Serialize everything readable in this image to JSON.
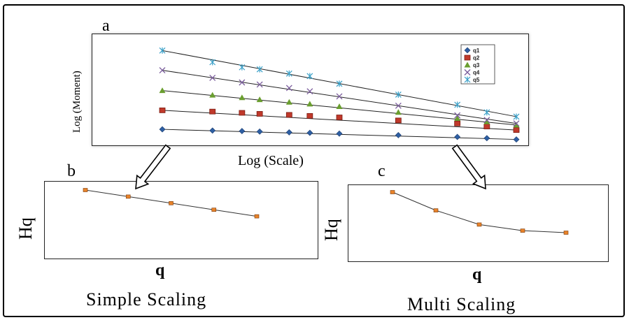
{
  "panels": {
    "a": {
      "letter": "a",
      "ylabel": "Log (Moment)",
      "xlabel": "Log (Scale)"
    },
    "b": {
      "letter": "b",
      "ylabel": "Hq",
      "xlabel": "q",
      "caption": "Simple Scaling"
    },
    "c": {
      "letter": "c",
      "ylabel": "Hq",
      "xlabel": "q",
      "caption": "Multi Scaling"
    }
  },
  "chart_data": [
    {
      "id": "a",
      "type": "line",
      "xlabel": "Log (Scale)",
      "ylabel": "Log (Moment)",
      "x": [
        1,
        2.7,
        3.7,
        4.3,
        5.3,
        6.0,
        7.0,
        9.0,
        11.0,
        12.0,
        13.0
      ],
      "series": [
        {
          "name": "q1",
          "marker": "diamond",
          "color": "#2e5fa3",
          "values": [
            0.55,
            0.5,
            0.48,
            0.46,
            0.43,
            0.41,
            0.38,
            0.32,
            0.25,
            0.2,
            0.15
          ]
        },
        {
          "name": "q2",
          "marker": "square",
          "color": "#c0392b",
          "values": [
            1.3,
            1.25,
            1.2,
            1.16,
            1.12,
            1.08,
            1.02,
            0.9,
            0.78,
            0.66,
            0.52
          ]
        },
        {
          "name": "q3",
          "marker": "triangle",
          "color": "#6a9e2f",
          "values": [
            2.08,
            1.9,
            1.8,
            1.72,
            1.62,
            1.55,
            1.45,
            1.22,
            0.98,
            0.85,
            0.72
          ]
        },
        {
          "name": "q4",
          "marker": "x",
          "color": "#7a5c9c",
          "values": [
            2.88,
            2.58,
            2.4,
            2.32,
            2.18,
            2.05,
            1.85,
            1.48,
            1.1,
            0.92,
            0.78
          ]
        },
        {
          "name": "q5",
          "marker": "star",
          "color": "#3aa0c8",
          "values": [
            3.66,
            3.2,
            3.0,
            2.92,
            2.75,
            2.65,
            2.35,
            1.92,
            1.52,
            1.22,
            1.05
          ]
        }
      ],
      "legend": "top-right"
    },
    {
      "id": "b",
      "type": "line",
      "xlabel": "q",
      "ylabel": "Hq",
      "x": [
        1,
        2,
        3,
        4,
        5
      ],
      "series": [
        {
          "values": [
            1.0,
            0.8,
            0.6,
            0.4,
            0.2
          ],
          "color": "#e8832a"
        }
      ]
    },
    {
      "id": "c",
      "type": "line",
      "xlabel": "q",
      "ylabel": "Hq",
      "x": [
        1,
        2,
        3,
        4,
        5
      ],
      "series": [
        {
          "values": [
            1.0,
            0.55,
            0.2,
            0.05,
            0.0
          ],
          "color": "#e8832a"
        }
      ]
    }
  ]
}
